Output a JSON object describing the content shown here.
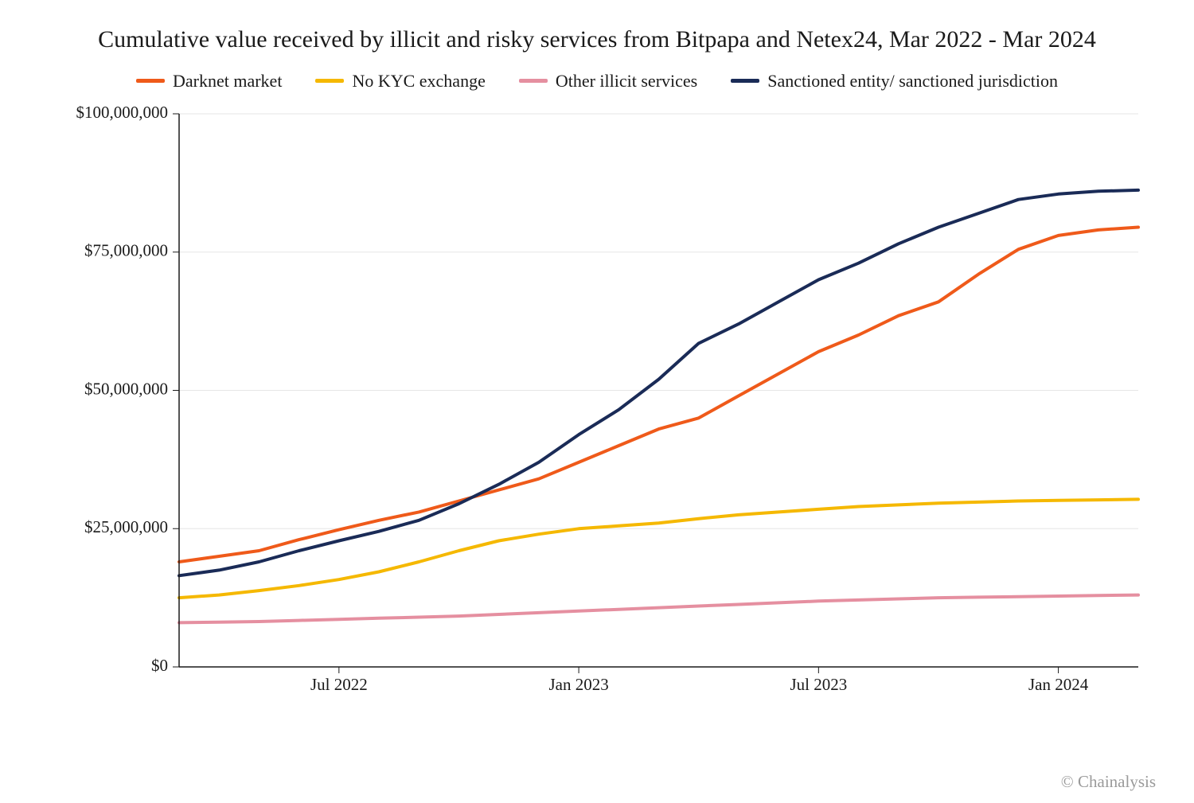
{
  "chart": {
    "type": "line",
    "title": "Cumulative value received by illicit and risky services from Bitpapa and Netex24, Mar 2022 - Mar 2024",
    "title_fontsize": 30,
    "background_color": "#ffffff",
    "grid_color": "#e6e6e6",
    "axis_color": "#1a1a1a",
    "text_color": "#1a1a1a",
    "line_width": 4,
    "x": {
      "min": 0,
      "max": 24,
      "ticks": [
        {
          "value": 4,
          "label": "Jul 2022"
        },
        {
          "value": 10,
          "label": "Jan 2023"
        },
        {
          "value": 16,
          "label": "Jul 2023"
        },
        {
          "value": 22,
          "label": "Jan 2024"
        }
      ]
    },
    "y": {
      "min": 0,
      "max": 100000000,
      "ticks": [
        {
          "value": 0,
          "label": "$0"
        },
        {
          "value": 25000000,
          "label": "$25,000,000"
        },
        {
          "value": 50000000,
          "label": "$50,000,000"
        },
        {
          "value": 75000000,
          "label": "$75,000,000"
        },
        {
          "value": 100000000,
          "label": "$100,000,000"
        }
      ]
    },
    "series": [
      {
        "name": "Darknet market",
        "color": "#ef5a1a",
        "values": [
          19000000,
          20000000,
          21000000,
          23000000,
          24800000,
          26500000,
          28000000,
          30000000,
          32000000,
          34000000,
          37000000,
          40000000,
          43000000,
          45000000,
          49000000,
          53000000,
          57000000,
          60000000,
          63500000,
          66000000,
          71000000,
          75500000,
          78000000,
          79000000,
          79500000
        ]
      },
      {
        "name": "No KYC exchange",
        "color": "#f5b800",
        "values": [
          12500000,
          13000000,
          13800000,
          14700000,
          15800000,
          17200000,
          19000000,
          21000000,
          22800000,
          24000000,
          25000000,
          25500000,
          26000000,
          26800000,
          27500000,
          28000000,
          28500000,
          29000000,
          29300000,
          29600000,
          29800000,
          30000000,
          30100000,
          30200000,
          30300000
        ]
      },
      {
        "name": "Other illicit services",
        "color": "#e58fa0",
        "values": [
          8000000,
          8100000,
          8200000,
          8400000,
          8600000,
          8800000,
          9000000,
          9200000,
          9500000,
          9800000,
          10100000,
          10400000,
          10700000,
          11000000,
          11300000,
          11600000,
          11900000,
          12100000,
          12300000,
          12500000,
          12600000,
          12700000,
          12800000,
          12900000,
          13000000
        ]
      },
      {
        "name": "Sanctioned entity/ sanctioned jurisdiction",
        "color": "#1a2b57",
        "values": [
          16500000,
          17500000,
          19000000,
          21000000,
          22800000,
          24500000,
          26500000,
          29500000,
          33000000,
          37000000,
          42000000,
          46500000,
          52000000,
          58500000,
          62000000,
          66000000,
          70000000,
          73000000,
          76500000,
          79500000,
          82000000,
          84500000,
          85500000,
          86000000,
          86200000
        ]
      }
    ],
    "attribution": "© Chainalysis",
    "attribution_color": "#9a9a9a"
  }
}
